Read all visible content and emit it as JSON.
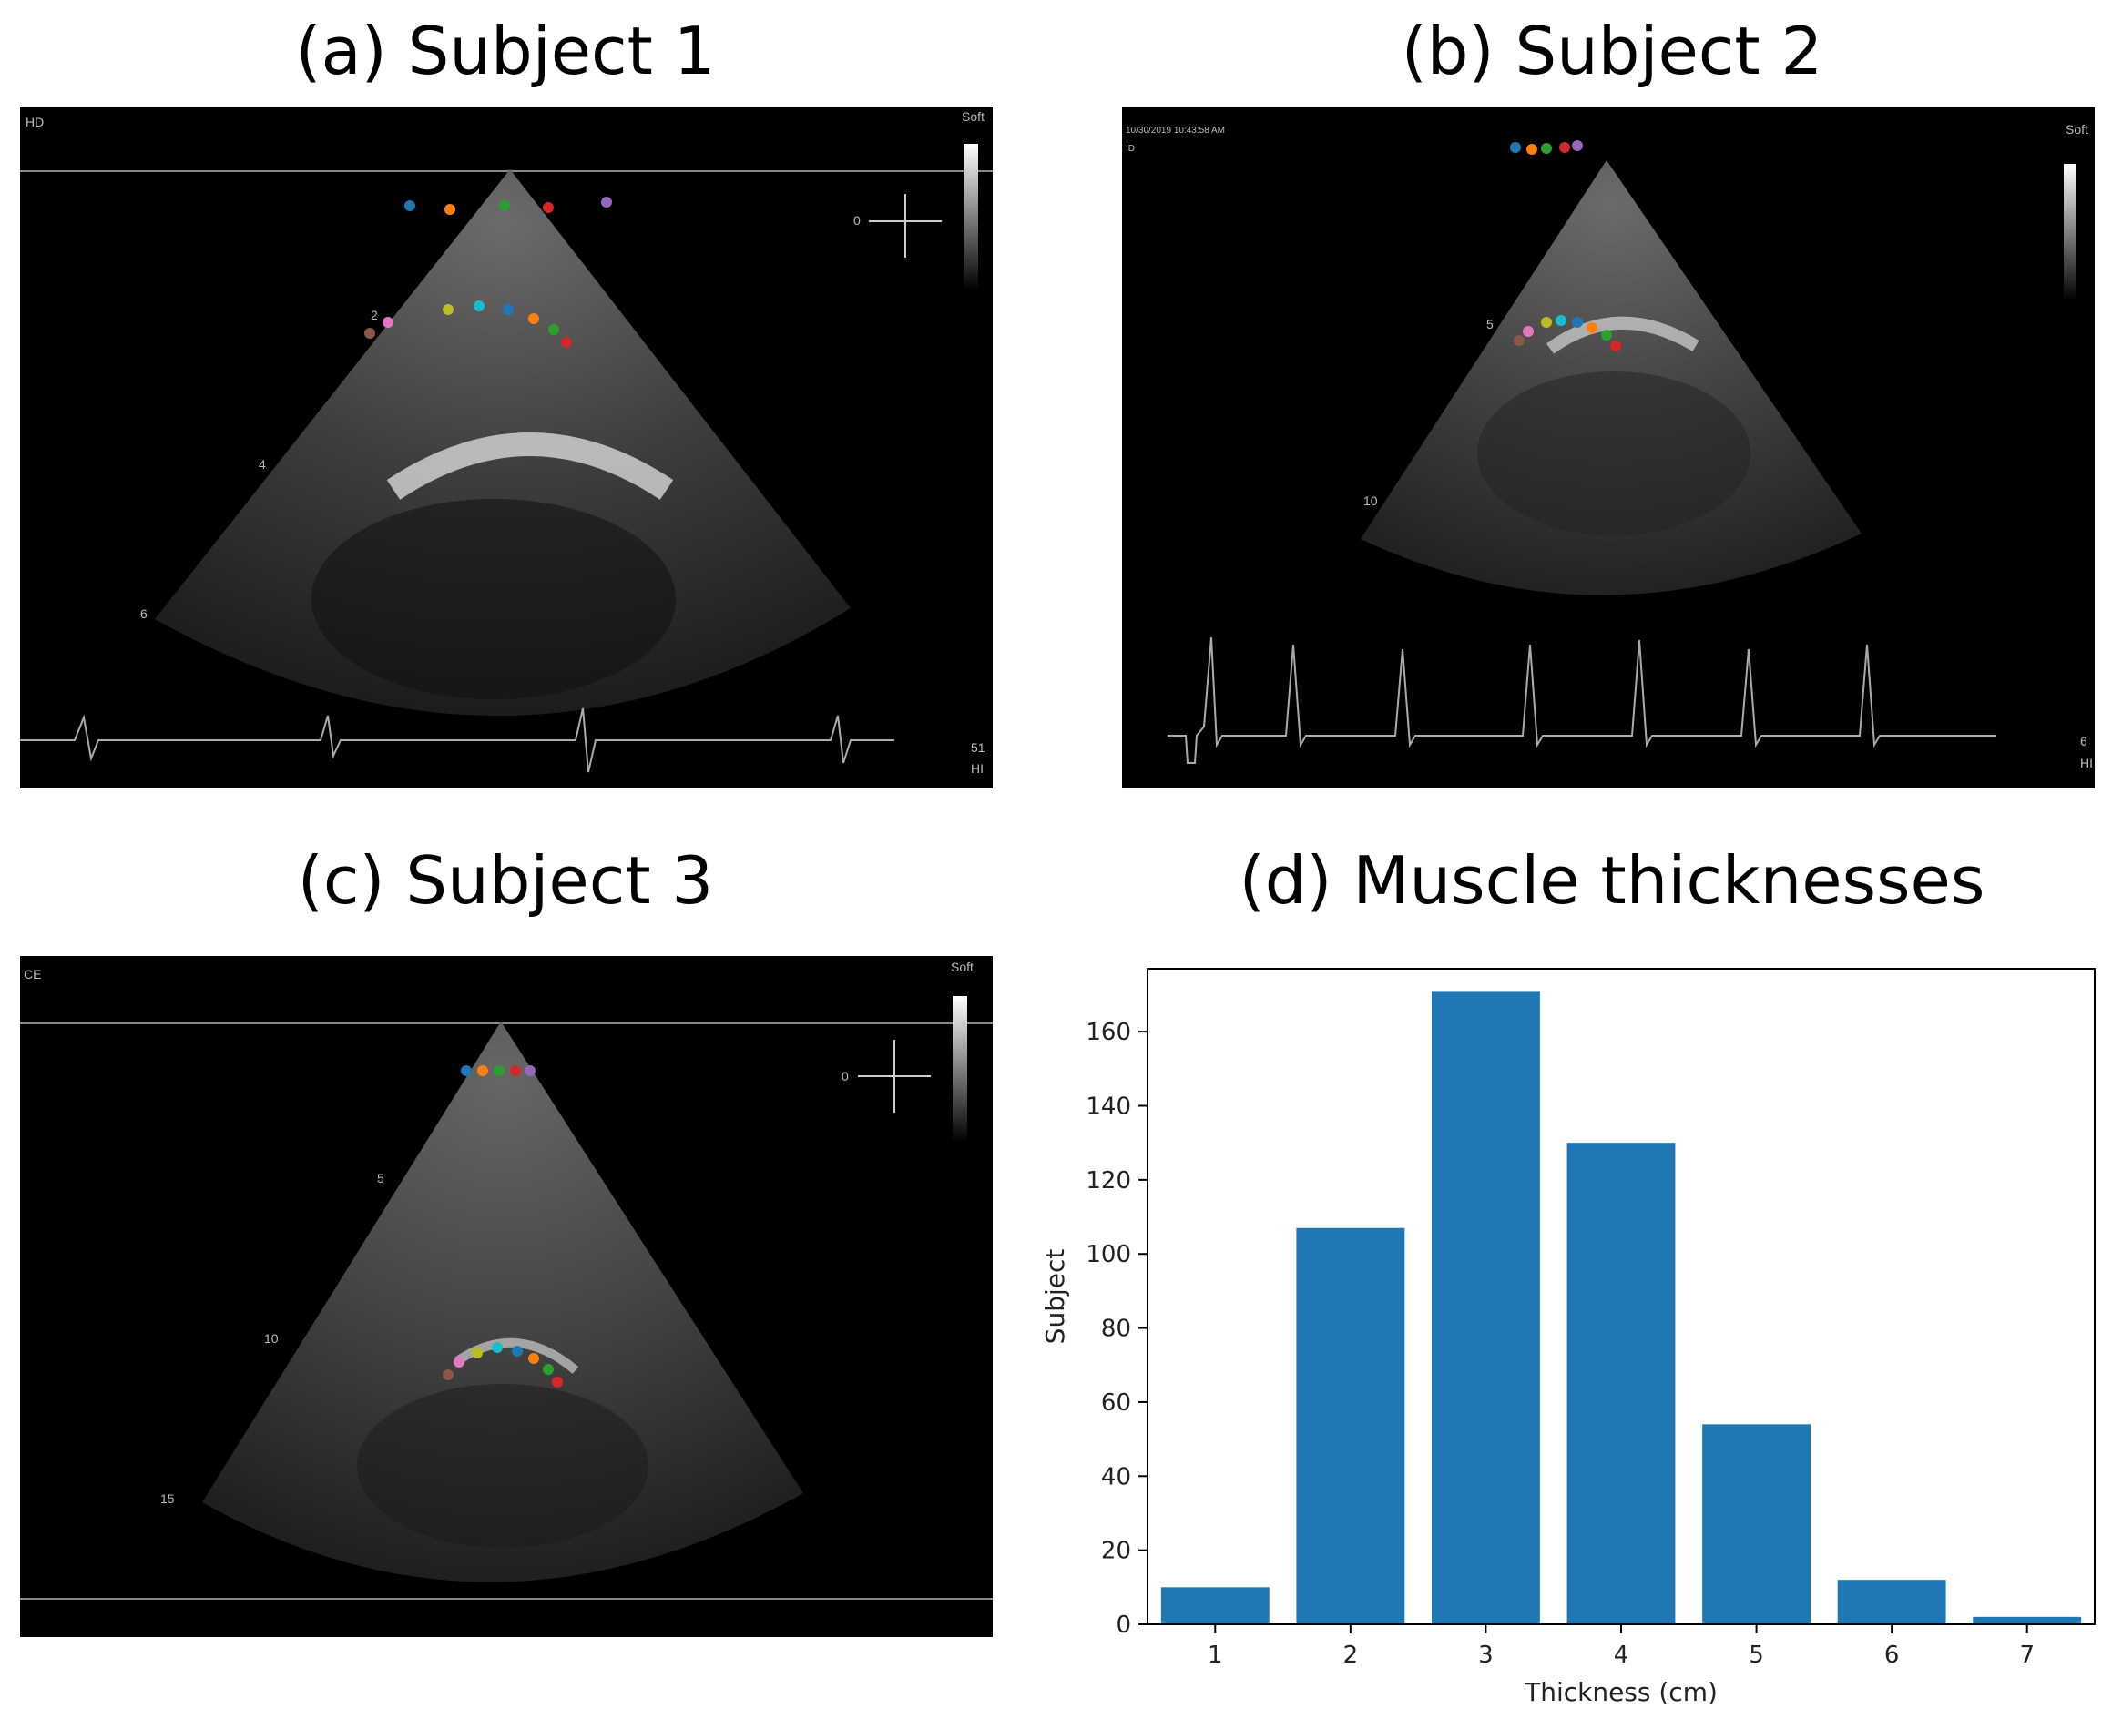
{
  "panels": {
    "a": {
      "title": "(a) Subject 1",
      "tl": "HD",
      "tr": "Soft",
      "br1": "51",
      "br2": "HI",
      "depth_labels": [
        "2",
        "4",
        "6"
      ],
      "zero": "0"
    },
    "b": {
      "title": "(b) Subject 2",
      "stamp": "10/30/2019 10:43:58 AM",
      "tl": "ID",
      "tr": "Soft",
      "depth_labels": [
        "5",
        "10"
      ],
      "br1": "6",
      "br2": "HI"
    },
    "c": {
      "title": "(c) Subject 3",
      "tl": "CE",
      "tr": "Soft",
      "depth_labels": [
        "5",
        "10",
        "15"
      ],
      "zero": "0"
    }
  },
  "colors": {
    "bar": "#1f77b4",
    "markers": [
      "#1f77b4",
      "#ff7f0e",
      "#2ca02c",
      "#d62728",
      "#9467bd",
      "#8c564b",
      "#e377c2",
      "#bcbd22",
      "#17becf"
    ]
  },
  "chart_data": {
    "type": "bar",
    "title": "(d) Muscle thicknesses",
    "xlabel": "Thickness (cm)",
    "ylabel": "Subject",
    "categories": [
      "1",
      "2",
      "3",
      "4",
      "5",
      "6",
      "7"
    ],
    "values": [
      10,
      107,
      171,
      130,
      54,
      12,
      2
    ],
    "ylim": [
      0,
      177
    ],
    "yticks": [
      0,
      20,
      40,
      60,
      80,
      100,
      120,
      140,
      160
    ],
    "grid": false,
    "legend": "none"
  }
}
